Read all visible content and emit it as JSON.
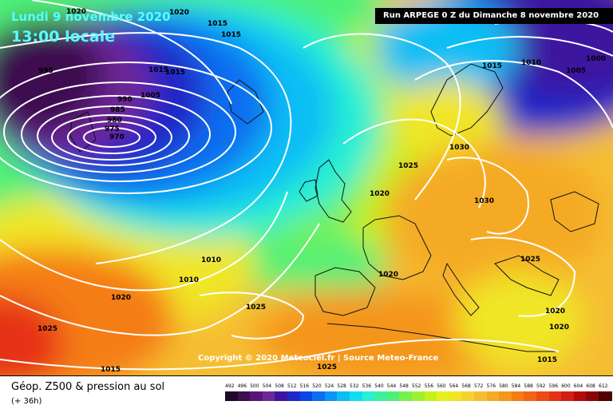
{
  "header": {
    "date_line": "Lundi 9 novembre 2020",
    "time_line": "13:00 locale",
    "run_line": "Run ARPEGE 0 Z du Dimanche 8 novembre 2020"
  },
  "copyright": "Copyright © 2020 Meteociel.fr | Source Meteo-France",
  "caption": {
    "title": "Géop. Z500 & pression au sol",
    "lead": "(+ 36h)"
  },
  "legend": {
    "values": [
      "492",
      "496",
      "500",
      "504",
      "508",
      "512",
      "516",
      "520",
      "524",
      "528",
      "532",
      "536",
      "540",
      "544",
      "548",
      "552",
      "556",
      "560",
      "564",
      "568",
      "572",
      "576",
      "580",
      "584",
      "588",
      "592",
      "596",
      "600",
      "604",
      "608",
      "612"
    ],
    "colors": [
      "#1e0a28",
      "#3c0f50",
      "#5a1478",
      "#6e2896",
      "#3c14a0",
      "#1e28c8",
      "#0a46e6",
      "#0a6ef0",
      "#0a96f5",
      "#0abef5",
      "#14dcf0",
      "#28f0d2",
      "#3cf0a0",
      "#50f078",
      "#78f050",
      "#a0f032",
      "#c8f01e",
      "#e6f01e",
      "#f0e628",
      "#f5d232",
      "#f5be32",
      "#f5aa28",
      "#f5961e",
      "#f57d14",
      "#f06414",
      "#eb4b14",
      "#e63214",
      "#d21e14",
      "#b40a0a",
      "#8c0505",
      "#500000"
    ]
  },
  "map_labels": [
    {
      "text": "1020"
    },
    {
      "text": "1015"
    },
    {
      "text": "1015"
    },
    {
      "text": "995"
    },
    {
      "text": "1020"
    },
    {
      "text": "1015"
    },
    {
      "text": "1015"
    },
    {
      "text": "990"
    },
    {
      "text": "1005"
    },
    {
      "text": "985"
    },
    {
      "text": "980"
    },
    {
      "text": "975"
    },
    {
      "text": "970"
    },
    {
      "text": "1015"
    },
    {
      "text": "1010"
    },
    {
      "text": "1005"
    },
    {
      "text": "1000"
    },
    {
      "text": "1030"
    },
    {
      "text": "1025"
    },
    {
      "text": "1020"
    },
    {
      "text": "1030"
    },
    {
      "text": "1010"
    },
    {
      "text": "1010"
    },
    {
      "text": "1020"
    },
    {
      "text": "1025"
    },
    {
      "text": "1025"
    },
    {
      "text": "1020"
    },
    {
      "text": "1025"
    },
    {
      "text": "1020"
    },
    {
      "text": "1020"
    },
    {
      "text": "1015"
    },
    {
      "text": "1015"
    },
    {
      "text": "1025"
    }
  ]
}
